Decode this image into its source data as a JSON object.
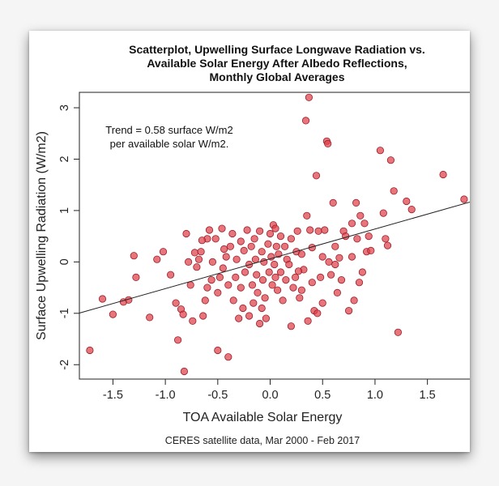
{
  "chart_data": {
    "type": "scatter",
    "title_lines": [
      "Scatterplot, Upwelling Surface Longwave Radiation vs.",
      "Available Solar Energy After Albedo Reflections,",
      "Monthly Global Averages"
    ],
    "xlabel": "TOA Available Solar Energy",
    "ylabel": "Surface Upwelling Radiation (W/m2)",
    "caption": "CERES satellite data, Mar 2000 - Feb 2017",
    "annotation_lines": [
      "Trend = 0.58 surface W/m2",
      "per available solar W/m2."
    ],
    "xlim": [
      -1.82,
      1.92
    ],
    "ylim": [
      -2.28,
      3.3
    ],
    "x_ticks": [
      {
        "value": -1.5,
        "label": "-1.5"
      },
      {
        "value": -1.0,
        "label": "-1.0"
      },
      {
        "value": -0.5,
        "label": "-0.5"
      },
      {
        "value": 0.0,
        "label": "0.0"
      },
      {
        "value": 0.5,
        "label": "0.5"
      },
      {
        "value": 1.0,
        "label": "1.0"
      },
      {
        "value": 1.5,
        "label": "1.5"
      }
    ],
    "y_ticks": [
      {
        "value": -2,
        "label": "-2"
      },
      {
        "value": -1,
        "label": "-1"
      },
      {
        "value": 0,
        "label": "0"
      },
      {
        "value": 1,
        "label": "1"
      },
      {
        "value": 2,
        "label": "2"
      },
      {
        "value": 3,
        "label": "3"
      }
    ],
    "trend_line": {
      "slope": 0.58,
      "intercept": 0.06
    },
    "grid": false,
    "point_color": "#e0404a",
    "point_stroke": "#9a1f2a",
    "points": [
      [
        -1.72,
        -1.72
      ],
      [
        -1.6,
        -0.72
      ],
      [
        -1.5,
        -1.02
      ],
      [
        -1.4,
        -0.78
      ],
      [
        -1.35,
        -0.74
      ],
      [
        -1.3,
        0.12
      ],
      [
        -1.28,
        -0.3
      ],
      [
        -1.15,
        -1.08
      ],
      [
        -1.08,
        0.05
      ],
      [
        -1.02,
        0.2
      ],
      [
        -0.95,
        -0.25
      ],
      [
        -0.9,
        -0.8
      ],
      [
        -0.88,
        -1.52
      ],
      [
        -0.85,
        -0.92
      ],
      [
        -0.83,
        -1.02
      ],
      [
        -0.82,
        -2.13
      ],
      [
        -0.8,
        0.55
      ],
      [
        -0.78,
        0.0
      ],
      [
        -0.76,
        -0.45
      ],
      [
        -0.74,
        -1.15
      ],
      [
        -0.72,
        0.18
      ],
      [
        -0.7,
        -0.1
      ],
      [
        -0.68,
        0.05
      ],
      [
        -0.66,
        0.2
      ],
      [
        -0.64,
        -1.05
      ],
      [
        -0.62,
        -0.75
      ],
      [
        -0.6,
        0.45
      ],
      [
        -0.6,
        -0.5
      ],
      [
        -0.58,
        0.62
      ],
      [
        -0.56,
        -0.35
      ],
      [
        -0.55,
        0.0
      ],
      [
        -0.52,
        0.45
      ],
      [
        -0.5,
        -1.72
      ],
      [
        -0.5,
        -0.6
      ],
      [
        -0.48,
        -0.3
      ],
      [
        -0.46,
        0.65
      ],
      [
        -0.45,
        -0.12
      ],
      [
        -0.42,
        0.1
      ],
      [
        -0.4,
        -0.45
      ],
      [
        -0.4,
        -1.85
      ],
      [
        -0.38,
        0.3
      ],
      [
        -0.36,
        0.55
      ],
      [
        -0.35,
        -0.75
      ],
      [
        -0.33,
        -0.3
      ],
      [
        -0.32,
        0.05
      ],
      [
        -0.3,
        -1.1
      ],
      [
        -0.28,
        0.4
      ],
      [
        -0.28,
        -0.5
      ],
      [
        -0.26,
        -0.9
      ],
      [
        -0.25,
        0.22
      ],
      [
        -0.24,
        -0.2
      ],
      [
        -0.22,
        0.62
      ],
      [
        -0.2,
        -0.05
      ],
      [
        -0.2,
        -1.05
      ],
      [
        -0.18,
        0.3
      ],
      [
        -0.17,
        -0.45
      ],
      [
        -0.16,
        -0.8
      ],
      [
        -0.15,
        0.45
      ],
      [
        -0.14,
        0.05
      ],
      [
        -0.13,
        -0.25
      ],
      [
        -0.12,
        -0.6
      ],
      [
        -0.1,
        -1.2
      ],
      [
        -0.1,
        0.6
      ],
      [
        -0.08,
        0.2
      ],
      [
        -0.07,
        -0.35
      ],
      [
        -0.06,
        0.0
      ],
      [
        -0.05,
        -0.7
      ],
      [
        -0.04,
        -1.1
      ],
      [
        -0.02,
        0.35
      ],
      [
        -0.01,
        -0.2
      ],
      [
        0.0,
        0.55
      ],
      [
        0.01,
        0.1
      ],
      [
        0.02,
        -0.45
      ],
      [
        0.03,
        0.72
      ],
      [
        0.04,
        -0.05
      ],
      [
        0.05,
        -0.3
      ],
      [
        0.06,
        0.3
      ],
      [
        0.07,
        -0.55
      ],
      [
        0.08,
        0.15
      ],
      [
        0.1,
        -0.2
      ],
      [
        0.1,
        0.5
      ],
      [
        0.12,
        -0.75
      ],
      [
        0.14,
        0.3
      ],
      [
        0.15,
        -0.35
      ],
      [
        0.16,
        0.05
      ],
      [
        0.18,
        -0.05
      ],
      [
        0.2,
        0.45
      ],
      [
        0.2,
        -1.25
      ],
      [
        0.22,
        -0.5
      ],
      [
        0.24,
        -0.3
      ],
      [
        0.25,
        0.2
      ],
      [
        0.26,
        0.6
      ],
      [
        0.28,
        -0.7
      ],
      [
        0.3,
        -0.55
      ],
      [
        0.3,
        0.15
      ],
      [
        0.32,
        -0.15
      ],
      [
        0.34,
        2.75
      ],
      [
        0.35,
        0.9
      ],
      [
        0.36,
        -1.15
      ],
      [
        0.37,
        3.2
      ],
      [
        0.38,
        0.62
      ],
      [
        0.4,
        -0.4
      ],
      [
        0.4,
        0.28
      ],
      [
        0.42,
        -0.95
      ],
      [
        0.44,
        1.68
      ],
      [
        0.46,
        0.6
      ],
      [
        0.48,
        -0.3
      ],
      [
        0.5,
        0.1
      ],
      [
        0.5,
        -0.8
      ],
      [
        0.52,
        0.62
      ],
      [
        0.54,
        2.35
      ],
      [
        0.55,
        2.3
      ],
      [
        0.56,
        0.0
      ],
      [
        0.58,
        -0.25
      ],
      [
        0.6,
        1.15
      ],
      [
        0.62,
        0.3
      ],
      [
        0.64,
        -0.6
      ],
      [
        0.66,
        0.08
      ],
      [
        0.68,
        -0.35
      ],
      [
        0.7,
        0.6
      ],
      [
        0.72,
        0.5
      ],
      [
        0.75,
        -0.95
      ],
      [
        0.78,
        0.1
      ],
      [
        0.8,
        -0.75
      ],
      [
        0.82,
        1.15
      ],
      [
        0.83,
        0.45
      ],
      [
        0.85,
        -0.4
      ],
      [
        0.86,
        0.9
      ],
      [
        0.88,
        -0.2
      ],
      [
        0.9,
        0.75
      ],
      [
        0.92,
        0.2
      ],
      [
        0.94,
        0.5
      ],
      [
        0.96,
        0.22
      ],
      [
        1.05,
        2.17
      ],
      [
        1.08,
        0.95
      ],
      [
        1.1,
        0.45
      ],
      [
        1.12,
        0.32
      ],
      [
        1.15,
        1.98
      ],
      [
        1.18,
        1.38
      ],
      [
        1.22,
        -1.37
      ],
      [
        1.3,
        1.18
      ],
      [
        1.35,
        1.02
      ],
      [
        1.65,
        1.7
      ],
      [
        1.85,
        1.22
      ],
      [
        0.05,
        0.65
      ],
      [
        -0.08,
        -0.9
      ],
      [
        0.27,
        -0.18
      ],
      [
        -0.44,
        0.25
      ],
      [
        0.62,
        -0.05
      ],
      [
        0.78,
        0.75
      ],
      [
        -0.65,
        0.42
      ],
      [
        0.45,
        -1.0
      ]
    ]
  }
}
